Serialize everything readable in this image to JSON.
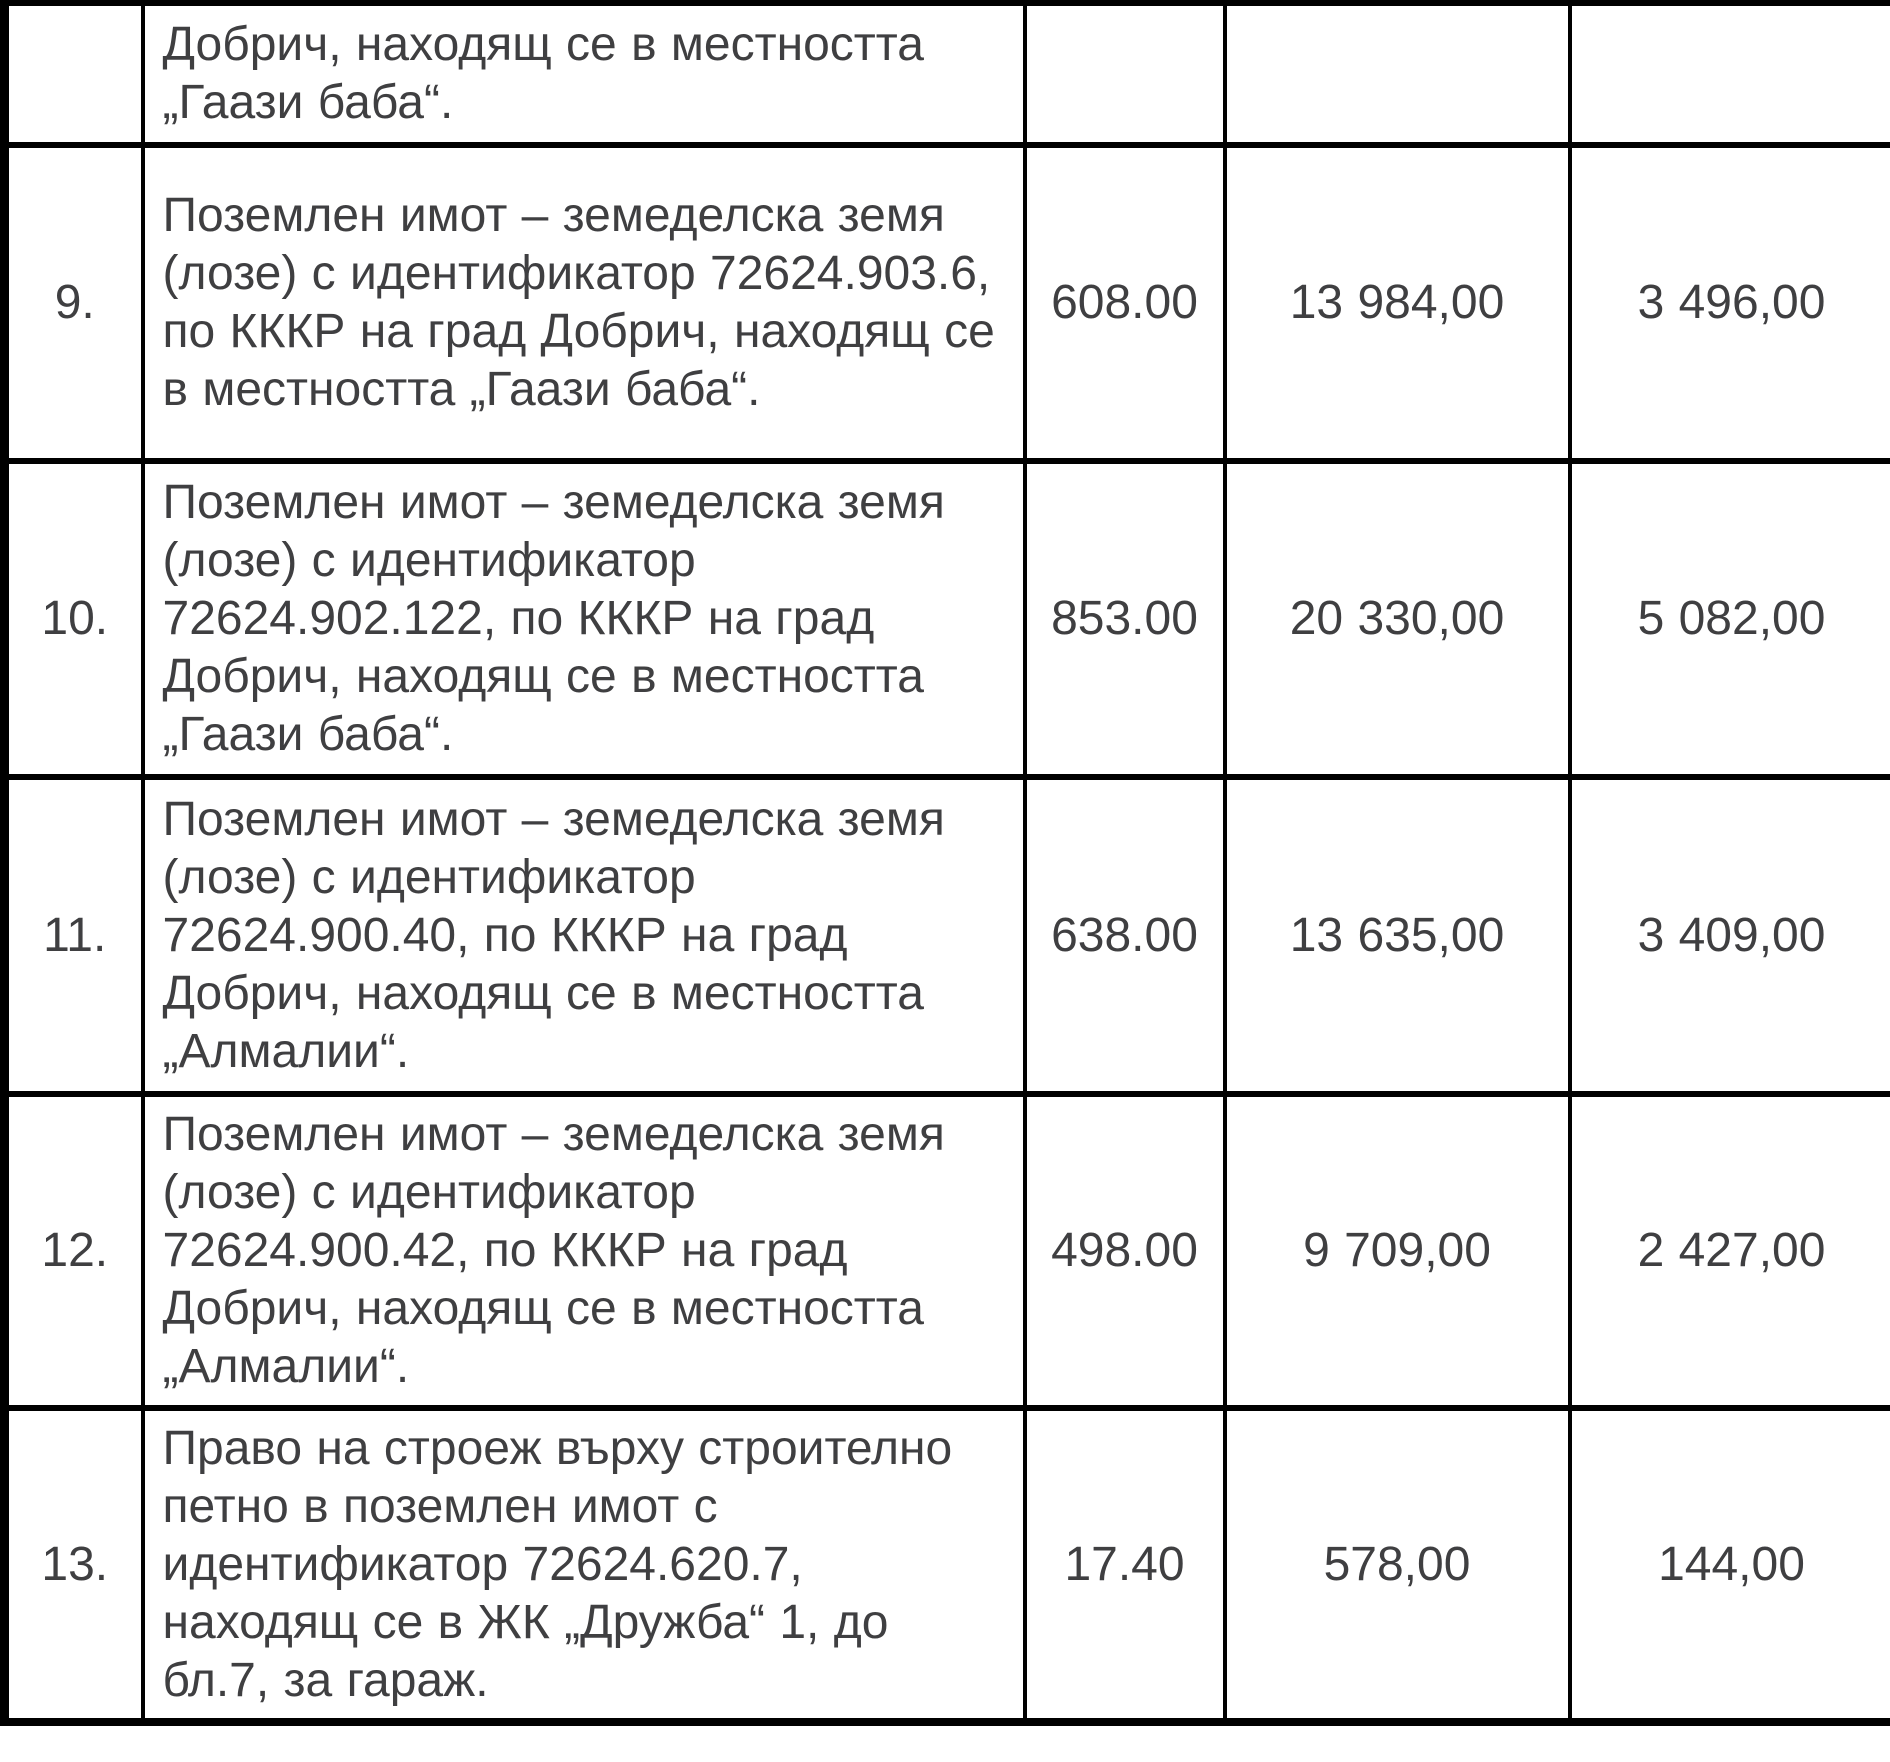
{
  "colors": {
    "text": "#3f3f41",
    "border": "#000000",
    "background": "#ffffff"
  },
  "table": {
    "rows": [
      {
        "number": "",
        "description": "Добрич, находящ се в местността „Гаази баба“.",
        "value_1": "",
        "value_2": "",
        "value_3": ""
      },
      {
        "number": "9.",
        "description": "Поземлен имот – земеделска земя (лозе) с идентификатор 72624.903.6, по КККР на град Добрич, находящ се в местността „Гаази баба“.",
        "value_1": "608.00",
        "value_2": "13 984,00",
        "value_3": "3 496,00"
      },
      {
        "number": "10.",
        "description": "Поземлен имот – земеделска земя (лозе) с идентификатор 72624.902.122, по КККР на град Добрич, находящ се в местността „Гаази баба“.",
        "value_1": "853.00",
        "value_2": "20 330,00",
        "value_3": "5 082,00"
      },
      {
        "number": "11.",
        "description": "Поземлен имот – земеделска земя (лозе) с идентификатор 72624.900.40, по КККР на град Добрич, находящ се в местността „Алмалии“.",
        "value_1": "638.00",
        "value_2": "13 635,00",
        "value_3": "3 409,00"
      },
      {
        "number": "12.",
        "description": "Поземлен имот – земеделска земя (лозе) с идентификатор 72624.900.42, по КККР на град Добрич, находящ се в местността „Алмалии“.",
        "value_1": "498.00",
        "value_2": "9 709,00",
        "value_3": "2 427,00"
      },
      {
        "number": "13.",
        "description": "Право на строеж върху строително петно в поземлен имот с идентификатор 72624.620.7, находящ се в ЖК „Дружба“ 1, до бл.7, за гараж.",
        "value_1": "17.40",
        "value_2": "578,00",
        "value_3": "144,00"
      }
    ]
  }
}
